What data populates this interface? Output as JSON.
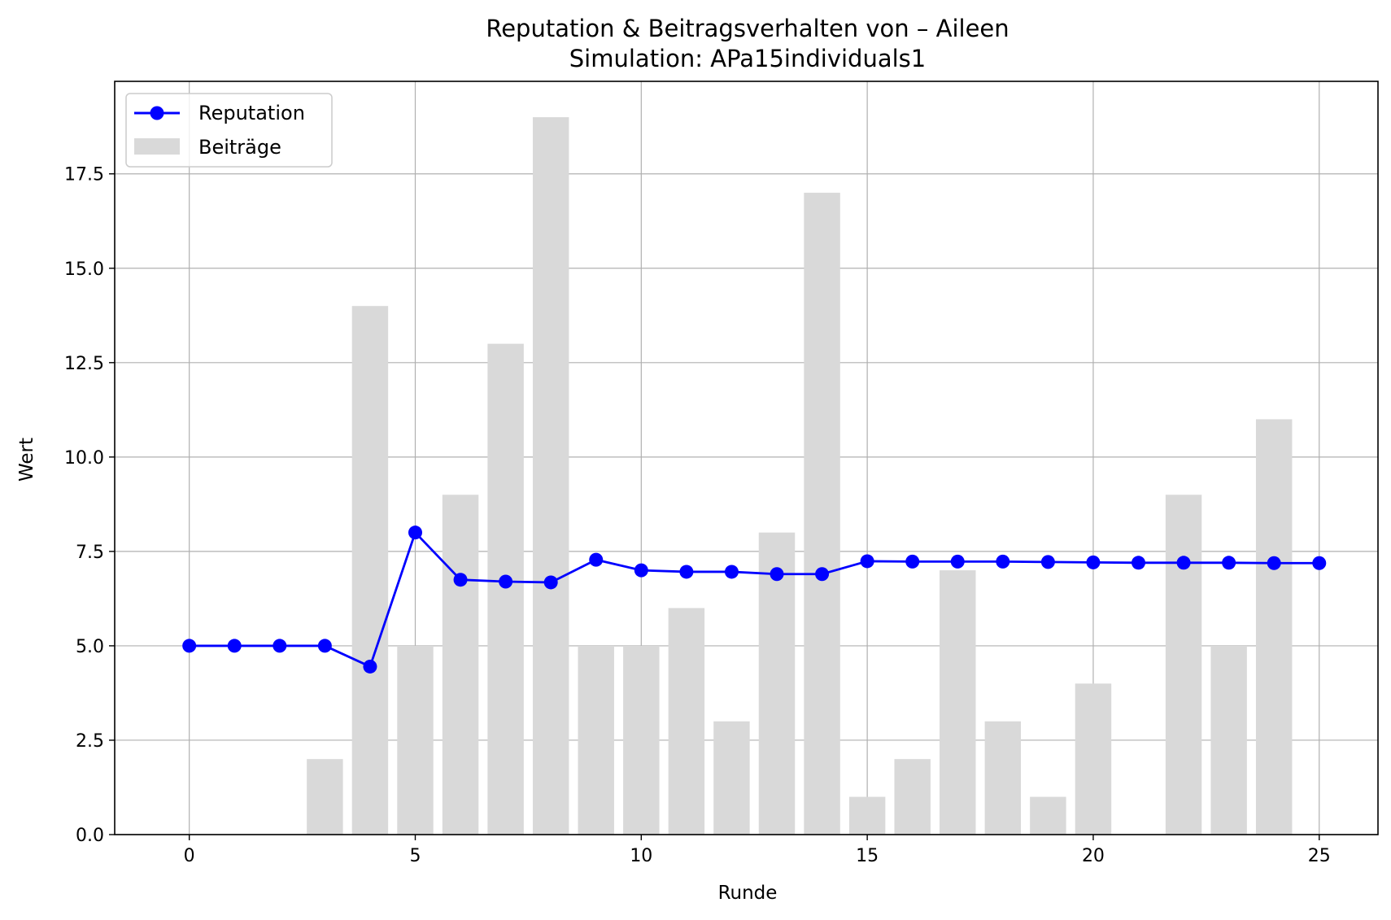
{
  "chart_data": {
    "type": "bar",
    "title": "Reputation & Beitragsverhalten von – Aileen",
    "subtitle": "Simulation: APa15individuals1",
    "xlabel": "Runde",
    "ylabel": "Wert",
    "xlim": [
      -1.65,
      26.3
    ],
    "ylim": [
      0,
      19.95
    ],
    "xticks": [
      0,
      5,
      10,
      15,
      20,
      25
    ],
    "xtick_labels": [
      "0",
      "5",
      "10",
      "15",
      "20",
      "25"
    ],
    "yticks": [
      0,
      2.5,
      5,
      7.5,
      10,
      12.5,
      15,
      17.5
    ],
    "ytick_labels": [
      "0.0",
      "2.5",
      "5.0",
      "7.5",
      "10.0",
      "12.5",
      "15.0",
      "17.5"
    ],
    "grid": true,
    "legend_position": "top-left",
    "x": [
      0,
      1,
      2,
      3,
      4,
      5,
      6,
      7,
      8,
      9,
      10,
      11,
      12,
      13,
      14,
      15,
      16,
      17,
      18,
      19,
      20,
      21,
      22,
      23,
      24,
      25
    ],
    "series": [
      {
        "name": "Reputation",
        "type": "line",
        "color": "#0000ff",
        "values": [
          5.0,
          5.0,
          5.0,
          5.0,
          4.45,
          8.0,
          6.75,
          6.7,
          6.68,
          7.28,
          7.0,
          6.96,
          6.96,
          6.9,
          6.9,
          7.24,
          7.23,
          7.23,
          7.23,
          7.22,
          7.21,
          7.2,
          7.2,
          7.2,
          7.19,
          7.19
        ]
      },
      {
        "name": "Beiträge",
        "type": "bar",
        "color": "#d9d9d9",
        "values": [
          0,
          0,
          0,
          2,
          14,
          5,
          9,
          13,
          19,
          5,
          5,
          6,
          3,
          8,
          17,
          1,
          2,
          7,
          3,
          1,
          4,
          0,
          9,
          5,
          11,
          0
        ]
      }
    ]
  }
}
